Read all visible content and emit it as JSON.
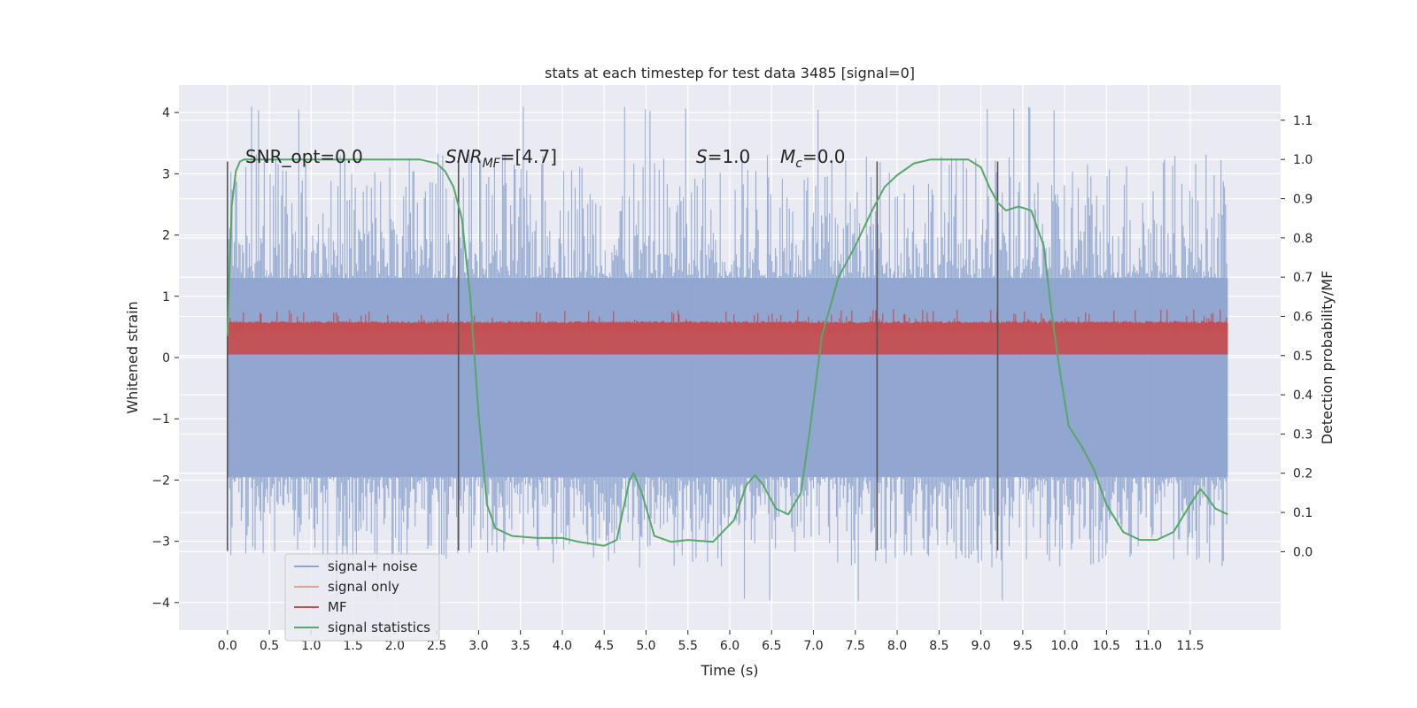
{
  "chart_data": {
    "type": "line",
    "title": "stats at each timestep for test data 3485 [signal=0]",
    "xlabel": "Time (s)",
    "ylabel": "Whitened strain",
    "y2label": "Detection probability/MF",
    "xlim": [
      -0.58,
      12.58
    ],
    "ylim": [
      -4.45,
      4.45
    ],
    "y2lim": [
      -0.2,
      1.19
    ],
    "xticks": [
      0.0,
      0.5,
      1.0,
      1.5,
      2.0,
      2.5,
      3.0,
      3.5,
      4.0,
      4.5,
      5.0,
      5.5,
      6.0,
      6.5,
      7.0,
      7.5,
      8.0,
      8.5,
      9.0,
      9.5,
      10.0,
      10.5,
      11.0,
      11.5
    ],
    "xtick_labels": [
      "0.0",
      "0.5",
      "1.0",
      "1.5",
      "2.0",
      "2.5",
      "3.0",
      "3.5",
      "4.0",
      "4.5",
      "5.0",
      "5.5",
      "6.0",
      "6.5",
      "7.0",
      "7.5",
      "8.0",
      "8.5",
      "9.0",
      "9.5",
      "10.0",
      "10.5",
      "11.0",
      "11.5"
    ],
    "yticks": [
      4,
      3,
      2,
      1,
      0,
      -1,
      -2,
      -3,
      -4
    ],
    "ytick_labels": [
      "4",
      "3",
      "2",
      "1",
      "0",
      "−1",
      "−2",
      "−3",
      "−4"
    ],
    "y2ticks": [
      1.1,
      1.0,
      0.9,
      0.8,
      0.7,
      0.6,
      0.5,
      0.4,
      0.3,
      0.2,
      0.1,
      0.0
    ],
    "y2tick_labels": [
      "1.1",
      "1.0",
      "0.9",
      "0.8",
      "0.7",
      "0.6",
      "0.5",
      "0.4",
      "0.3",
      "0.2",
      "0.1",
      "0.0"
    ],
    "vlines": [
      0.0,
      2.76,
      7.76,
      9.2
    ],
    "vline_range": [
      -3.15,
      3.2
    ],
    "noise_band": {
      "upper": 1.3,
      "lower": -1.95,
      "peak_upper": 4.1,
      "peak_lower": -4.0
    },
    "mf_band": {
      "lower": 0.05,
      "upper": 0.55,
      "peak": 1.0
    },
    "series": [
      {
        "name": "signal+ noise",
        "color": "#8fa5cf"
      },
      {
        "name": "signal only",
        "color": "#e8a283"
      },
      {
        "name": "MF",
        "color": "#c44e52"
      },
      {
        "name": "signal statistics",
        "color": "#55a868",
        "axis": "right",
        "x": [
          0.0,
          0.05,
          0.1,
          0.15,
          0.2,
          0.3,
          0.5,
          1.0,
          1.5,
          2.0,
          2.3,
          2.5,
          2.6,
          2.7,
          2.8,
          2.9,
          3.0,
          3.1,
          3.2,
          3.4,
          3.7,
          4.0,
          4.2,
          4.5,
          4.65,
          4.8,
          4.85,
          4.95,
          5.1,
          5.3,
          5.5,
          5.8,
          6.05,
          6.2,
          6.3,
          6.4,
          6.55,
          6.7,
          6.85,
          6.95,
          7.1,
          7.3,
          7.5,
          7.7,
          7.85,
          8.0,
          8.2,
          8.4,
          8.6,
          8.85,
          9.0,
          9.1,
          9.2,
          9.3,
          9.45,
          9.6,
          9.75,
          9.85,
          9.95,
          10.05,
          10.2,
          10.35,
          10.5,
          10.7,
          10.9,
          11.1,
          11.3,
          11.5,
          11.62,
          11.7,
          11.8,
          11.95
        ],
        "values": [
          0.55,
          0.88,
          0.97,
          0.995,
          1.0,
          1.0,
          1.0,
          1.0,
          1.0,
          1.0,
          1.0,
          0.99,
          0.97,
          0.93,
          0.85,
          0.65,
          0.35,
          0.12,
          0.06,
          0.04,
          0.035,
          0.035,
          0.025,
          0.015,
          0.03,
          0.18,
          0.2,
          0.15,
          0.04,
          0.025,
          0.03,
          0.025,
          0.08,
          0.17,
          0.195,
          0.17,
          0.11,
          0.095,
          0.15,
          0.3,
          0.55,
          0.7,
          0.78,
          0.87,
          0.93,
          0.96,
          0.99,
          1.0,
          1.0,
          1.0,
          0.98,
          0.93,
          0.89,
          0.87,
          0.88,
          0.87,
          0.78,
          0.6,
          0.45,
          0.32,
          0.27,
          0.21,
          0.12,
          0.05,
          0.03,
          0.03,
          0.05,
          0.12,
          0.16,
          0.14,
          0.11,
          0.095
        ]
      }
    ],
    "annotations": [
      {
        "text": "SNR_opt=0.0"
      },
      {
        "text": "SNR",
        "sub": "MF",
        "suffix": "=[4.7]"
      },
      {
        "text": "S",
        "suffix": "=1.0"
      },
      {
        "text": "M",
        "sub": "c",
        "suffix": "=0.0"
      }
    ],
    "legend": {
      "location": "lower-left",
      "entries": [
        "signal+ noise",
        "signal only",
        "MF",
        "signal statistics"
      ]
    }
  }
}
